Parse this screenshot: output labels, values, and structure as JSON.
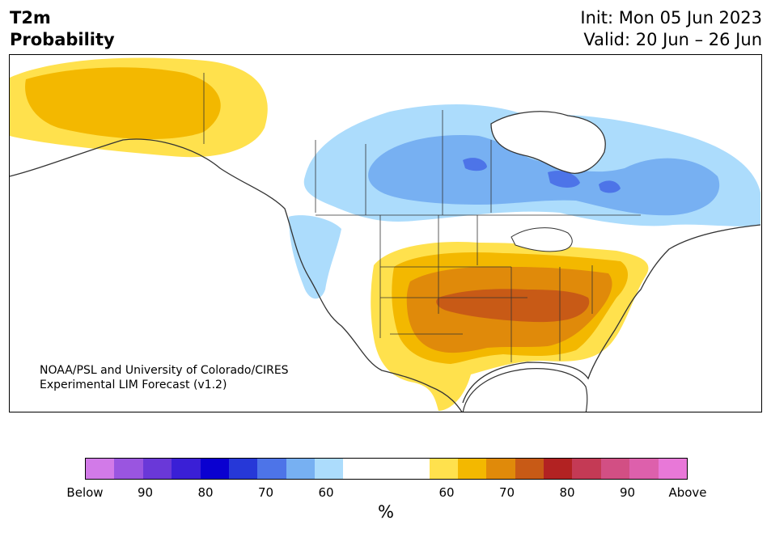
{
  "header": {
    "variable": "T2m",
    "quantity": "Probability",
    "init": "Init: Mon 05 Jun 2023",
    "valid": "Valid: 20 Jun – 26 Jun"
  },
  "credit": {
    "line1": "NOAA/PSL and University of Colorado/CIRES",
    "line2": "Experimental LIM Forecast (v1.2)"
  },
  "legend": {
    "unit": "%",
    "below_colors": [
      "#d27ae8",
      "#9a55e0",
      "#6a38d8",
      "#3a1fd6",
      "#0a00d0",
      "#2638d8",
      "#4d74e8",
      "#77b0f2",
      "#acdcfc"
    ],
    "neutral_color": "#ffffff",
    "above_colors": [
      "#ffe14d",
      "#f3b800",
      "#e08a0a",
      "#c85a16",
      "#b22222",
      "#c43a55",
      "#d24f84",
      "#dd60ac",
      "#e878d8"
    ],
    "tick_labels": [
      "Below",
      "90",
      "80",
      "70",
      "60",
      "60",
      "70",
      "80",
      "90",
      "Above"
    ]
  },
  "map": {
    "region": "North America",
    "fill_colors": {
      "cold_60": "#acdcfc",
      "cold_70": "#77b0f2",
      "cold_80": "#4d74e8",
      "warm_60": "#ffe14d",
      "warm_70": "#f3b800",
      "warm_80": "#e08a0a",
      "warm_90": "#c85a16",
      "land_line": "#333333"
    }
  }
}
